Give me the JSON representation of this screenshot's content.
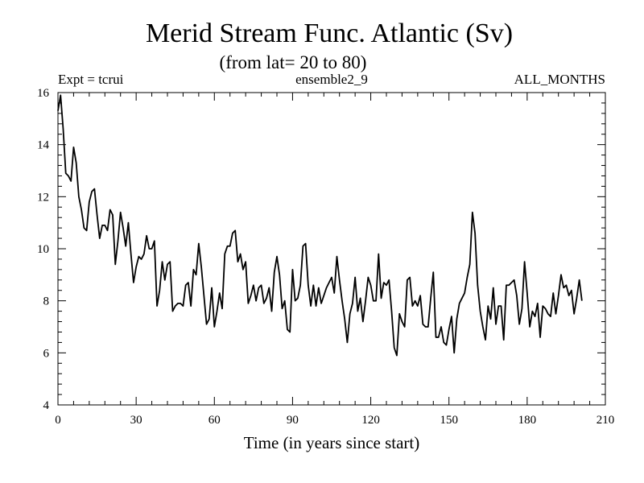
{
  "chart_data": {
    "type": "line",
    "title": "Merid Stream Func. Atlantic (Sv)",
    "subtitle": "(from lat= 20 to 80)",
    "header_left": "Expt = tcrui",
    "header_center": "ensemble2_9",
    "header_right": "ALL_MONTHS",
    "xlabel": "Time (in years since start)",
    "ylabel": "",
    "xlim": [
      0,
      210
    ],
    "ylim": [
      4,
      16
    ],
    "x_ticks": [
      0,
      30,
      60,
      90,
      120,
      150,
      180,
      210
    ],
    "y_ticks": [
      4,
      6,
      8,
      10,
      12,
      14,
      16
    ],
    "x_tick_labels": [
      "0",
      "30",
      "60",
      "90",
      "120",
      "150",
      "180",
      "210"
    ],
    "y_tick_labels": [
      "4",
      "6",
      "8",
      "10",
      "12",
      "14",
      "16"
    ],
    "x_minor_step": 6,
    "y_minor_step": 0.4,
    "grid": false,
    "x_start": 0,
    "x_step": 1,
    "series": [
      {
        "name": "ensemble2_9",
        "color": "#000000",
        "values": [
          15.3,
          15.9,
          14.6,
          12.9,
          12.8,
          12.6,
          13.9,
          13.3,
          12.0,
          11.5,
          10.8,
          10.7,
          11.8,
          12.2,
          12.3,
          11.3,
          10.4,
          10.9,
          10.9,
          10.7,
          11.5,
          11.3,
          9.4,
          10.3,
          11.4,
          10.8,
          10.1,
          11.0,
          9.8,
          8.7,
          9.3,
          9.7,
          9.6,
          9.8,
          10.5,
          10.0,
          10.0,
          10.3,
          7.8,
          8.4,
          9.5,
          8.8,
          9.4,
          9.5,
          7.6,
          7.8,
          7.9,
          7.9,
          7.8,
          8.6,
          8.7,
          7.8,
          9.2,
          9.0,
          10.2,
          9.3,
          8.2,
          7.1,
          7.3,
          8.5,
          7.0,
          7.6,
          8.3,
          7.7,
          9.8,
          10.1,
          10.1,
          10.6,
          10.7,
          9.5,
          9.8,
          9.2,
          9.5,
          7.9,
          8.2,
          8.6,
          8.0,
          8.5,
          8.6,
          7.9,
          8.1,
          8.5,
          7.6,
          9.1,
          9.7,
          9.0,
          7.7,
          8.0,
          6.9,
          6.8,
          9.2,
          8.0,
          8.1,
          8.6,
          10.1,
          10.2,
          8.6,
          7.8,
          8.6,
          7.8,
          8.5,
          7.9,
          8.2,
          8.5,
          8.7,
          8.9,
          8.3,
          9.7,
          8.8,
          8.0,
          7.3,
          6.4,
          7.5,
          7.9,
          8.9,
          7.6,
          8.1,
          7.2,
          8.0,
          8.9,
          8.6,
          8.0,
          8.0,
          9.8,
          8.1,
          8.7,
          8.6,
          8.8,
          7.6,
          6.2,
          5.9,
          7.5,
          7.2,
          7.0,
          8.8,
          8.9,
          7.8,
          8.0,
          7.8,
          8.2,
          7.1,
          7.0,
          7.0,
          8.1,
          9.1,
          6.6,
          6.6,
          7.0,
          6.4,
          6.3,
          6.9,
          7.4,
          6.0,
          7.3,
          7.9,
          8.1,
          8.3,
          8.9,
          9.4,
          11.4,
          10.6,
          8.6,
          7.6,
          7.0,
          6.5,
          7.8,
          7.3,
          8.5,
          7.1,
          7.8,
          7.8,
          6.5,
          8.6,
          8.6,
          8.7,
          8.8,
          8.2,
          7.1,
          7.7,
          9.5,
          8.3,
          7.0,
          7.6,
          7.4,
          7.9,
          6.6,
          7.8,
          7.7,
          7.5,
          7.4,
          8.3,
          7.5,
          8.2,
          9.0,
          8.5,
          8.6,
          8.2,
          8.4,
          7.5,
          8.1,
          8.8,
          8.0
        ]
      }
    ]
  }
}
